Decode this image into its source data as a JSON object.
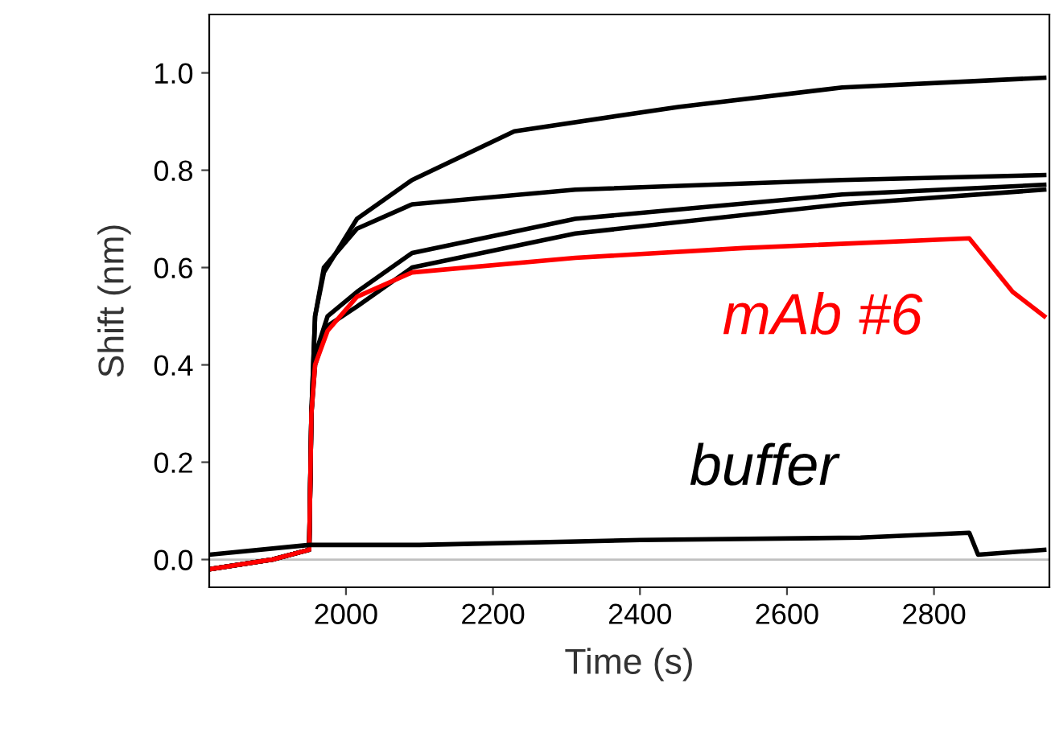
{
  "chart_data": {
    "type": "line",
    "xlabel": "Time (s)",
    "ylabel": "Shift (nm)",
    "xlim": [
      1814,
      2957
    ],
    "ylim": [
      -0.057,
      1.12
    ],
    "xticks": [
      2000,
      2200,
      2400,
      2600,
      2800
    ],
    "yticks": [
      {
        "value": 0,
        "label": "0.0"
      },
      {
        "value": 0.2,
        "label": "0.2"
      },
      {
        "value": 0.4,
        "label": "0.4"
      },
      {
        "value": 0.6,
        "label": "0.6"
      },
      {
        "value": 0.8,
        "label": "0.8"
      },
      {
        "value": 1,
        "label": "1.0"
      }
    ],
    "grid": false,
    "legend": false,
    "marker": "none",
    "line_style": "solid",
    "ref_lines": [
      {
        "axis": "y",
        "value": 0,
        "color": "#c0c0c0"
      }
    ],
    "series": [
      {
        "color": "#000000",
        "x": [
          1814,
          1900,
          1950,
          1953,
          1958,
          1970,
          2015,
          2090,
          2229,
          2452,
          2675,
          2950
        ],
        "values": [
          -0.02,
          0.0,
          0.02,
          0.3,
          0.5,
          0.59,
          0.7,
          0.78,
          0.88,
          0.93,
          0.97,
          0.99
        ]
      },
      {
        "color": "#000000",
        "x": [
          1814,
          1900,
          1950,
          1953,
          1958,
          1970,
          2015,
          2090,
          2312,
          2675,
          2950
        ],
        "values": [
          -0.02,
          0.0,
          0.02,
          0.3,
          0.5,
          0.6,
          0.68,
          0.73,
          0.76,
          0.78,
          0.79
        ]
      },
      {
        "color": "#000000",
        "x": [
          1814,
          1900,
          1950,
          1953,
          1958,
          1975,
          2015,
          2090,
          2312,
          2675,
          2950
        ],
        "values": [
          -0.02,
          0.0,
          0.02,
          0.3,
          0.42,
          0.5,
          0.55,
          0.63,
          0.7,
          0.75,
          0.77
        ]
      },
      {
        "color": "#000000",
        "x": [
          1814,
          1900,
          1950,
          1953,
          1958,
          1975,
          2015,
          2090,
          2312,
          2675,
          2950
        ],
        "values": [
          -0.02,
          0.0,
          0.02,
          0.3,
          0.4,
          0.48,
          0.52,
          0.6,
          0.67,
          0.73,
          0.76
        ]
      },
      {
        "name": "mAb #6",
        "color": "#ff0000",
        "x": [
          1814,
          1900,
          1950,
          1953,
          1958,
          1975,
          2015,
          2090,
          2312,
          2540,
          2848,
          2907,
          2950
        ],
        "values": [
          -0.02,
          0.0,
          0.02,
          0.3,
          0.4,
          0.47,
          0.54,
          0.59,
          0.62,
          0.64,
          0.66,
          0.55,
          0.5
        ]
      },
      {
        "name": "buffer",
        "color": "#000000",
        "x": [
          1814,
          1950,
          2100,
          2400,
          2700,
          2848,
          2860,
          2950
        ],
        "values": [
          0.01,
          0.03,
          0.03,
          0.04,
          0.045,
          0.055,
          0.01,
          0.02
        ]
      }
    ]
  }
}
